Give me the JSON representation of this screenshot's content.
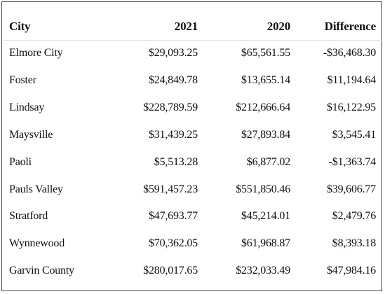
{
  "table": {
    "header": [
      "City",
      "2021",
      "2020",
      "Difference"
    ],
    "rows": [
      [
        "Elmore City",
        "$29,093.25",
        "$65,561.55",
        "-$36,468.30"
      ],
      [
        "Foster",
        "$24,849.78",
        "$13,655.14",
        "$11,194.64"
      ],
      [
        "Lindsay",
        "$228,789.59",
        "$212,666.64",
        "$16,122.95"
      ],
      [
        "Maysville",
        "$31,439.25",
        "$27,893.84",
        "$3,545.41"
      ],
      [
        "Paoli",
        "$5,513.28",
        "$6,877.02",
        "-$1,363.74"
      ],
      [
        "Pauls Valley",
        "$591,457.23",
        "$551,850.46",
        "$39,606.77"
      ],
      [
        "Stratford",
        "$47,693.77",
        "$45,214.01",
        "$2,479.76"
      ],
      [
        "Wynnewood",
        "$70,362.05",
        "$61,968.87",
        "$8,393.18"
      ],
      [
        "Garvin County",
        "$280,017.65",
        "$232,033.49",
        "$47,984.16"
      ]
    ]
  }
}
